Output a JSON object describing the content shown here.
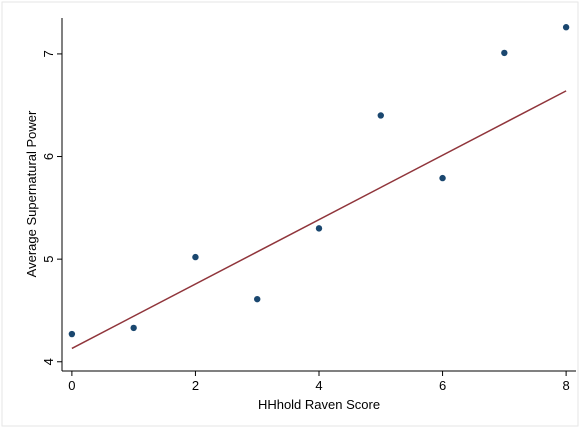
{
  "chart_data": {
    "type": "scatter",
    "x_label": "HHhold Raven Score",
    "y_label": "Average Supernatural Power",
    "points": {
      "x": [
        0,
        1,
        2,
        3,
        4,
        5,
        6,
        7,
        8
      ],
      "y": [
        4.27,
        4.33,
        5.02,
        4.61,
        5.3,
        6.4,
        5.79,
        7.01,
        7.26
      ],
      "color": "#1a476f"
    },
    "fit_line": {
      "x": [
        0,
        8
      ],
      "y": [
        4.13,
        6.64
      ],
      "color": "#90353b"
    },
    "xlim": [
      -0.16,
      8.16
    ],
    "ylim": [
      3.91,
      7.35
    ],
    "xticks": [
      0,
      2,
      4,
      6,
      8
    ],
    "yticks": [
      4,
      5,
      6,
      7
    ]
  }
}
